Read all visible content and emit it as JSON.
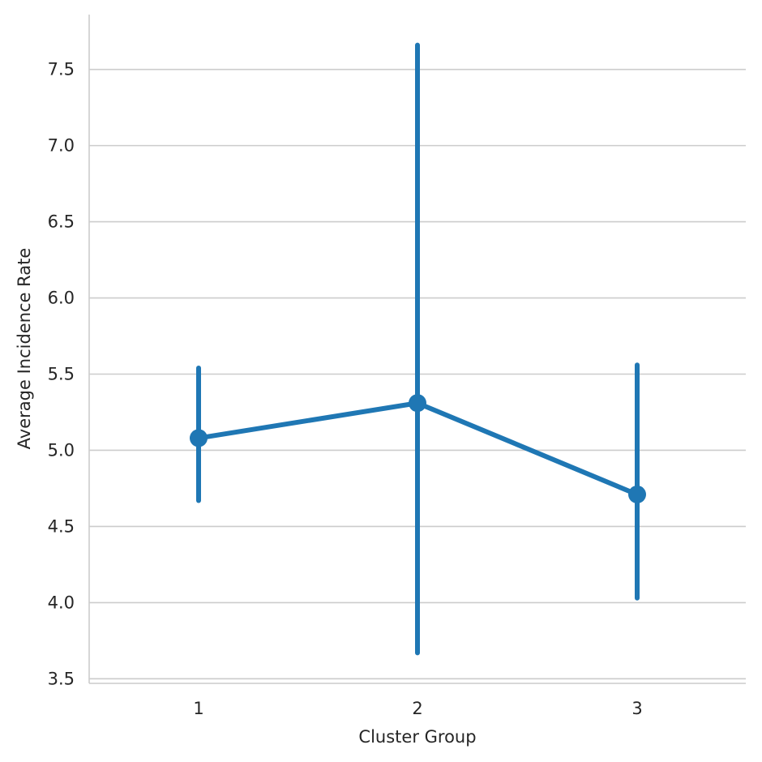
{
  "chart_data": {
    "type": "line",
    "title": "",
    "xlabel": "Cluster Group",
    "ylabel": "Average Incidence Rate",
    "categories": [
      "1",
      "2",
      "3"
    ],
    "series": [
      {
        "values": [
          5.08,
          5.31,
          4.71
        ],
        "ci_low": [
          4.67,
          3.67,
          4.03
        ],
        "ci_high": [
          5.54,
          7.66,
          5.56
        ]
      }
    ],
    "yticks": [
      3.5,
      4.0,
      4.5,
      5.0,
      5.5,
      6.0,
      6.5,
      7.0,
      7.5
    ],
    "ylim": [
      3.47,
      7.86
    ],
    "grid": "horizontal",
    "color": "#1f77b4"
  }
}
